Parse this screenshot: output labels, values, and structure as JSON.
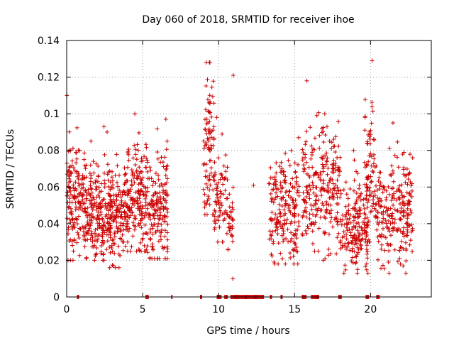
{
  "chart_data": {
    "type": "scatter",
    "title": "Day 060 of 2018, SRMTID for receiver ihoe",
    "xlabel": "GPS time / hours",
    "ylabel": "SRMTID / TECUs",
    "xlim": [
      0,
      24
    ],
    "ylim": [
      0,
      0.14
    ],
    "x_ticks": [
      0,
      5,
      10,
      15,
      20
    ],
    "y_ticks": [
      0,
      0.02,
      0.04,
      0.06,
      0.08,
      0.1,
      0.12,
      0.14
    ],
    "x_tick_labels": [
      "0",
      "5",
      "10",
      "15",
      "20"
    ],
    "y_tick_labels": [
      "0",
      "0.02",
      "0.04",
      "0.06",
      "0.08",
      "0.1",
      "0.12",
      "0.14"
    ],
    "grid": true,
    "marker": "+",
    "color": "#cc0000",
    "series": [
      {
        "name": "SRMTID",
        "note": "Dense scatter of several thousand points; values approximated from the figure as cluster envelopes",
        "clusters": [
          {
            "x": [
              0.0,
              0.8
            ],
            "y_center": 0.052,
            "y_spread": 0.018,
            "y_min": 0.02,
            "y_max": 0.11,
            "n": 110
          },
          {
            "x": [
              0.8,
              2.5
            ],
            "y_center": 0.048,
            "y_spread": 0.014,
            "y_min": 0.02,
            "y_max": 0.093,
            "n": 220
          },
          {
            "x": [
              2.5,
              4.0
            ],
            "y_center": 0.047,
            "y_spread": 0.013,
            "y_min": 0.016,
            "y_max": 0.09,
            "n": 200
          },
          {
            "x": [
              4.0,
              5.3
            ],
            "y_center": 0.055,
            "y_spread": 0.015,
            "y_min": 0.025,
            "y_max": 0.1,
            "n": 170
          },
          {
            "x": [
              5.3,
              6.7
            ],
            "y_center": 0.048,
            "y_spread": 0.016,
            "y_min": 0.021,
            "y_max": 0.097,
            "n": 170
          },
          {
            "x": [
              9.0,
              9.7
            ],
            "y_center": 0.08,
            "y_spread": 0.022,
            "y_min": 0.045,
            "y_max": 0.128,
            "n": 90
          },
          {
            "x": [
              9.7,
              10.6
            ],
            "y_center": 0.055,
            "y_spread": 0.012,
            "y_min": 0.03,
            "y_max": 0.098,
            "n": 70
          },
          {
            "x": [
              10.6,
              11.0
            ],
            "y_center": 0.04,
            "y_spread": 0.012,
            "y_min": 0.01,
            "y_max": 0.121,
            "n": 30
          },
          {
            "x": [
              12.3,
              12.3
            ],
            "y_center": 0.061,
            "y_spread": 0.0,
            "y_min": 0.061,
            "y_max": 0.061,
            "n": 1
          },
          {
            "x": [
              13.3,
              15.3
            ],
            "y_center": 0.048,
            "y_spread": 0.014,
            "y_min": 0.018,
            "y_max": 0.087,
            "n": 200
          },
          {
            "x": [
              15.5,
              16.8
            ],
            "y_center": 0.06,
            "y_spread": 0.016,
            "y_min": 0.025,
            "y_max": 0.118,
            "n": 120
          },
          {
            "x": [
              16.8,
              18.0
            ],
            "y_center": 0.06,
            "y_spread": 0.016,
            "y_min": 0.02,
            "y_max": 0.1,
            "n": 130
          },
          {
            "x": [
              18.0,
              19.9
            ],
            "y_center": 0.038,
            "y_spread": 0.012,
            "y_min": 0.013,
            "y_max": 0.08,
            "n": 190
          },
          {
            "x": [
              19.6,
              20.3
            ],
            "y_center": 0.07,
            "y_spread": 0.025,
            "y_min": 0.03,
            "y_max": 0.129,
            "n": 70
          },
          {
            "x": [
              20.3,
              22.8
            ],
            "y_center": 0.048,
            "y_spread": 0.014,
            "y_min": 0.013,
            "y_max": 0.095,
            "n": 240
          }
        ],
        "zero_value_ranges": [
          [
            0.7,
            0.8
          ],
          [
            5.2,
            5.4
          ],
          [
            6.9,
            6.95
          ],
          [
            8.8,
            8.9
          ],
          [
            9.9,
            10.2
          ],
          [
            10.4,
            10.6
          ],
          [
            10.8,
            13.0
          ],
          [
            13.4,
            13.5
          ],
          [
            14.1,
            14.2
          ],
          [
            15.5,
            15.8
          ],
          [
            16.1,
            16.6
          ],
          [
            17.9,
            18.1
          ],
          [
            19.7,
            19.9
          ],
          [
            20.4,
            20.6
          ]
        ]
      }
    ]
  }
}
